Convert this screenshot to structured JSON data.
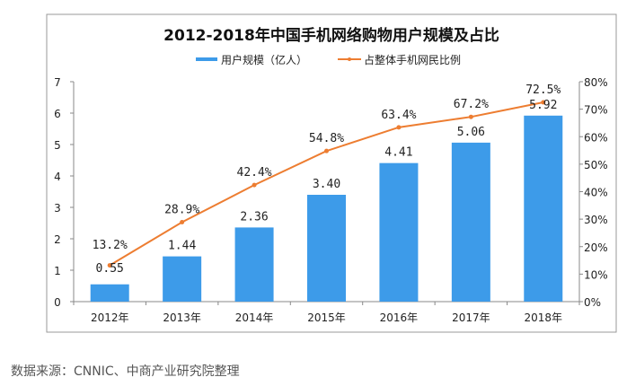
{
  "chart_data": {
    "type": "bar+line",
    "title": "2012-2018年中国手机网络购物用户规模及占比",
    "categories": [
      "2012年",
      "2013年",
      "2014年",
      "2015年",
      "2016年",
      "2017年",
      "2018年"
    ],
    "series": [
      {
        "name": "用户规模（亿人）",
        "type": "bar",
        "axis": "left",
        "color": "#3d9be9",
        "values": [
          0.55,
          1.44,
          2.36,
          3.4,
          4.41,
          5.06,
          5.92
        ],
        "labels": [
          "0.55",
          "1.44",
          "2.36",
          "3.40",
          "4.41",
          "5.06",
          "5.92"
        ]
      },
      {
        "name": "占整体手机网民比例",
        "type": "line",
        "axis": "right",
        "color": "#ed7d31",
        "values": [
          13.2,
          28.9,
          42.4,
          54.8,
          63.4,
          67.2,
          72.5
        ],
        "labels": [
          "13.2%",
          "28.9%",
          "42.4%",
          "54.8%",
          "63.4%",
          "67.2%",
          "72.5%"
        ]
      }
    ],
    "y_left": {
      "range": [
        0,
        7
      ],
      "ticks": [
        "0",
        "1",
        "2",
        "3",
        "4",
        "5",
        "6",
        "7"
      ]
    },
    "y_right": {
      "range": [
        0,
        80
      ],
      "ticks": [
        "0%",
        "10%",
        "20%",
        "30%",
        "40%",
        "50%",
        "60%",
        "70%",
        "80%"
      ]
    },
    "legend_position": "top",
    "grid": false
  },
  "source": "数据来源：CNNIC、中商产业研究院整理",
  "watermark": "中商产业研究院"
}
